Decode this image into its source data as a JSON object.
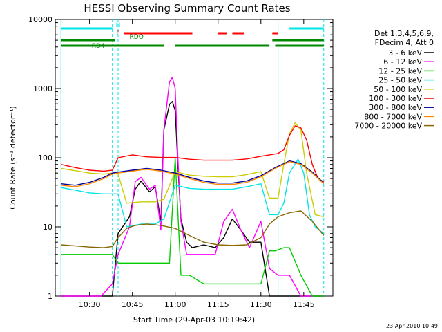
{
  "chart_data": {
    "type": "line",
    "title": "HESSI Observing Summary Count Rates",
    "xlabel": "Start Time (29-Apr-03 10:19:42)",
    "ylabel": "Count Rate (s⁻¹ detector⁻¹)",
    "yscale": "log",
    "ylim": [
      1,
      10000
    ],
    "xlim_minutes": [
      10.3,
      11.92
    ],
    "x_ticks": [
      "10:30",
      "10:45",
      "11:00",
      "11:15",
      "11:30",
      "11:45"
    ],
    "y_ticks": [
      "1",
      "10",
      "100",
      "1000",
      "10000"
    ],
    "legend_header": [
      "Det 1,3,4,5,6,9,",
      "FDecim 4, Att 0"
    ],
    "series": [
      {
        "name": "3 - 6 keV",
        "color": "#000000",
        "x": [
          "10:20",
          "10:30",
          "10:38",
          "10:40",
          "10:44",
          "10:46",
          "10:48",
          "10:51",
          "10:53",
          "10:55",
          "10:56",
          "10:58",
          "10:59",
          "11:00",
          "11:01",
          "11:02",
          "11:04",
          "11:06",
          "11:10",
          "11:14",
          "11:17",
          "11:20",
          "11:23",
          "11:26",
          "11:30",
          "11:33",
          "11:36",
          "11:40",
          "11:44",
          "11:48",
          "11:52"
        ],
        "y": [
          1,
          1,
          1,
          8,
          14,
          35,
          46,
          32,
          38,
          12,
          250,
          590,
          650,
          480,
          70,
          13,
          6,
          5,
          5.5,
          5,
          7,
          13,
          9,
          6,
          6,
          1,
          1,
          1,
          1,
          1,
          1
        ]
      },
      {
        "name": "6 - 12 keV",
        "color": "#ff00ff",
        "x": [
          "10:20",
          "10:34",
          "10:38",
          "10:40",
          "10:44",
          "10:46",
          "10:48",
          "10:51",
          "10:53",
          "10:55",
          "10:56",
          "10:58",
          "10:59",
          "11:00",
          "11:01",
          "11:02",
          "11:04",
          "11:06",
          "11:10",
          "11:14",
          "11:17",
          "11:20",
          "11:23",
          "11:26",
          "11:30",
          "11:33",
          "11:36",
          "11:40",
          "11:44",
          "11:48",
          "11:52"
        ],
        "y": [
          1,
          1,
          1.5,
          4,
          10,
          45,
          52,
          35,
          40,
          9,
          250,
          1250,
          1450,
          1000,
          90,
          12,
          4,
          4,
          4,
          4,
          12,
          18,
          9,
          5,
          12,
          2.5,
          2,
          2,
          1,
          1,
          1
        ]
      },
      {
        "name": "12 - 25 keV",
        "color": "#00cc00",
        "x": [
          "10:20",
          "10:30",
          "10:38",
          "10:40",
          "10:44",
          "10:48",
          "10:52",
          "10:55",
          "10:58",
          "11:00",
          "11:02",
          "11:05",
          "11:10",
          "11:20",
          "11:30",
          "11:33",
          "11:35",
          "11:38",
          "11:40",
          "11:44",
          "11:48",
          "11:52"
        ],
        "y": [
          4,
          4,
          4,
          3,
          3,
          3,
          3,
          3,
          3,
          100,
          2,
          2,
          1.5,
          1.5,
          1.5,
          4.5,
          4.5,
          5,
          5,
          2,
          1,
          1
        ]
      },
      {
        "name": "25 - 50 keV",
        "color": "#00e5e5",
        "x": [
          "10:20",
          "10:25",
          "10:30",
          "10:35",
          "10:38",
          "10:40",
          "10:43",
          "10:48",
          "10:53",
          "10:56",
          "11:00",
          "11:05",
          "11:10",
          "11:15",
          "11:20",
          "11:25",
          "11:30",
          "11:33",
          "11:36",
          "11:38",
          "11:40",
          "11:43",
          "11:45",
          "11:47",
          "11:49",
          "11:52"
        ],
        "y": [
          37,
          34,
          31,
          30,
          30,
          30,
          10,
          11,
          11,
          13,
          40,
          36,
          35,
          35,
          35,
          38,
          42,
          15,
          15,
          22,
          60,
          95,
          60,
          15,
          10,
          8
        ]
      },
      {
        "name": "50 - 100 keV",
        "color": "#cccc00",
        "x": [
          "10:20",
          "10:25",
          "10:30",
          "10:35",
          "10:38",
          "10:40",
          "10:43",
          "10:48",
          "10:53",
          "10:56",
          "11:00",
          "11:05",
          "11:10",
          "11:15",
          "11:20",
          "11:25",
          "11:30",
          "11:33",
          "11:36",
          "11:38",
          "11:40",
          "11:42",
          "11:44",
          "11:46",
          "11:49",
          "11:52"
        ],
        "y": [
          70,
          65,
          60,
          58,
          60,
          58,
          22,
          23,
          23,
          25,
          63,
          56,
          54,
          53,
          53,
          57,
          63,
          26,
          26,
          80,
          220,
          320,
          250,
          60,
          15,
          14
        ]
      },
      {
        "name": "100 - 300 keV",
        "color": "#ff0000",
        "x": [
          "10:20",
          "10:25",
          "10:30",
          "10:35",
          "10:38",
          "10:40",
          "10:45",
          "10:50",
          "10:55",
          "11:00",
          "11:05",
          "11:10",
          "11:15",
          "11:20",
          "11:25",
          "11:30",
          "11:33",
          "11:36",
          "11:38",
          "11:40",
          "11:42",
          "11:44",
          "11:46",
          "11:48",
          "11:50",
          "11:52"
        ],
        "y": [
          80,
          72,
          66,
          64,
          66,
          100,
          110,
          103,
          101,
          101,
          95,
          92,
          92,
          92,
          96,
          105,
          110,
          115,
          130,
          210,
          290,
          270,
          180,
          80,
          50,
          45
        ]
      },
      {
        "name": "300 - 800 keV",
        "color": "#000099",
        "x": [
          "10:20",
          "10:25",
          "10:30",
          "10:35",
          "10:38",
          "10:40",
          "10:45",
          "10:50",
          "10:55",
          "11:00",
          "11:05",
          "11:10",
          "11:15",
          "11:20",
          "11:25",
          "11:30",
          "11:35",
          "11:38",
          "11:40",
          "11:44",
          "11:48",
          "11:52"
        ],
        "y": [
          42,
          40,
          44,
          52,
          60,
          62,
          66,
          70,
          66,
          60,
          52,
          46,
          43,
          43,
          46,
          55,
          72,
          82,
          90,
          82,
          62,
          43
        ]
      },
      {
        "name": "800 - 7000 keV",
        "color": "#ff8800",
        "x": [
          "10:20",
          "10:25",
          "10:30",
          "10:35",
          "10:38",
          "10:40",
          "10:45",
          "10:50",
          "10:55",
          "11:00",
          "11:05",
          "11:10",
          "11:15",
          "11:20",
          "11:25",
          "11:30",
          "11:35",
          "11:38",
          "11:40",
          "11:44",
          "11:48",
          "11:52"
        ],
        "y": [
          40,
          38,
          42,
          50,
          58,
          60,
          64,
          68,
          64,
          58,
          50,
          44,
          41,
          41,
          44,
          53,
          70,
          80,
          88,
          80,
          60,
          42
        ]
      },
      {
        "name": "7000 - 20000 keV",
        "color": "#886600",
        "x": [
          "10:20",
          "10:25",
          "10:30",
          "10:35",
          "10:38",
          "10:40",
          "10:43",
          "10:46",
          "10:50",
          "10:55",
          "11:00",
          "11:05",
          "11:10",
          "11:15",
          "11:20",
          "11:25",
          "11:30",
          "11:33",
          "11:36",
          "11:40",
          "11:44",
          "11:48",
          "11:52"
        ],
        "y": [
          5.5,
          5.3,
          5.1,
          5.0,
          5.2,
          7,
          9.5,
          10.5,
          11,
          10.5,
          9.5,
          7.5,
          6,
          5.5,
          5.4,
          5.5,
          7,
          11,
          14,
          16,
          17,
          12,
          7.5
        ]
      }
    ],
    "status_bars": [
      {
        "label": "N",
        "color": "#00e5e5",
        "segments": [
          [
            "10:20",
            "10:38"
          ],
          [
            "11:40",
            "11:52"
          ]
        ]
      },
      {
        "label": "F",
        "color": "#ff0000",
        "segments": [
          [
            "10:42",
            "11:06"
          ],
          [
            "11:15",
            "11:18"
          ],
          [
            "11:20",
            "11:24"
          ],
          [
            "11:34",
            "11:36"
          ]
        ]
      },
      {
        "label": "RDO",
        "color": "#008800",
        "segments": [
          [
            "10:20",
            "10:39"
          ],
          [
            "11:34",
            "11:52"
          ]
        ]
      },
      {
        "label": "RD4",
        "color": "#008800",
        "segments": [
          [
            "10:20",
            "10:56"
          ],
          [
            "11:00",
            "11:33"
          ],
          [
            "11:35",
            "11:52"
          ]
        ]
      }
    ],
    "vlines": [
      {
        "x": "10:20",
        "color": "#00e5e5",
        "style": "solid"
      },
      {
        "x": "10:38",
        "color": "#00e5e5",
        "style": "dashed"
      },
      {
        "x": "10:40",
        "color": "#00e5e5",
        "style": "dashed"
      },
      {
        "x": "11:36",
        "color": "#00e5e5",
        "style": "solid"
      },
      {
        "x": "11:52",
        "color": "#00e5e5",
        "style": "dashed"
      }
    ]
  },
  "footer": "23-Apr-2010 10:49"
}
